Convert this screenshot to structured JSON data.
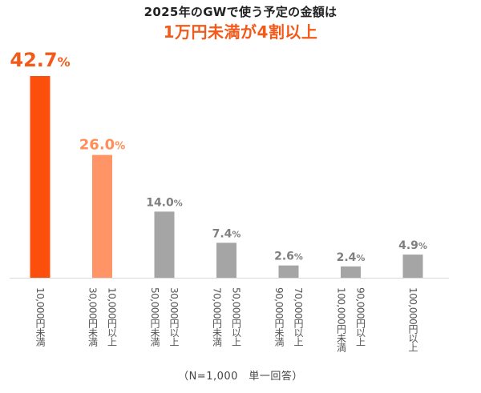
{
  "chart_data": {
    "type": "bar",
    "title": "2025年のGWで使う予定の金額は",
    "subtitle": "1万円未満が4割以上",
    "categories": [
      [
        "10,000円未満"
      ],
      [
        "10,000円以上",
        "30,000円未満"
      ],
      [
        "30,000円以上",
        "50,000円未満"
      ],
      [
        "50,000円以上",
        "70,000円未満"
      ],
      [
        "70,000円以上",
        "90,000円未満"
      ],
      [
        "90,000円以上",
        "100,000円未満"
      ],
      [
        "100,000円以上"
      ]
    ],
    "values": [
      42.7,
      26.0,
      14.0,
      7.4,
      2.6,
      2.4,
      4.9
    ],
    "value_labels": [
      "42.7",
      "26.0",
      "14.0",
      "7.4",
      "2.6",
      "2.4",
      "4.9"
    ],
    "unit": "%",
    "ylim": [
      0,
      42.7
    ],
    "grid": false,
    "colors": [
      "#fc4f0b",
      "#ff9566",
      "#a5a5a5",
      "#a5a5a5",
      "#a5a5a5",
      "#a5a5a5",
      "#a5a5a5"
    ],
    "label_colors": [
      "#f25a1a",
      "#ff8f59",
      "#7f7f7f",
      "#7f7f7f",
      "#7f7f7f",
      "#7f7f7f",
      "#7f7f7f"
    ],
    "note": "（N=1,000　単一回答）"
  }
}
